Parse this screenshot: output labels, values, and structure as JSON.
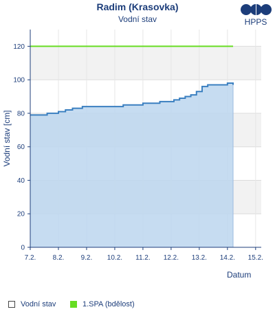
{
  "header": {
    "title": "Radim (Krasovka)",
    "subtitle": "Vodní stav",
    "logo_text": "HPPS"
  },
  "legend": {
    "items": [
      {
        "label": "Vodní stav",
        "color": "#ffffff",
        "border": "#444444"
      },
      {
        "label": "1.SPA (bdělost)",
        "color": "#66dd22",
        "border": "#66dd22"
      }
    ]
  },
  "colors": {
    "area_fill": "#bcd6ef",
    "line": "#3a7fc0",
    "spa": "#66dd22",
    "band": "#f2f2f2",
    "axis": "#1c3d7a"
  },
  "chart_data": {
    "type": "area",
    "title": "Radim (Krasovka)",
    "subtitle": "Vodní stav",
    "ylabel": "Vodní stav [cm]",
    "xlabel": "Datum",
    "ylim": [
      0,
      130
    ],
    "xlim": [
      7,
      15.2
    ],
    "y_ticks": [
      0,
      20,
      40,
      60,
      80,
      100,
      120
    ],
    "x_ticks": [
      "7.2.",
      "8.2.",
      "9.2.",
      "10.2.",
      "11.2.",
      "12.2.",
      "13.2.",
      "14.2.",
      "15.2."
    ],
    "thresholds": [
      {
        "name": "1.SPA (bdělost)",
        "value": 120
      }
    ],
    "series": [
      {
        "name": "Vodní stav",
        "x": [
          7.0,
          7.55,
          7.6,
          7.85,
          8.0,
          8.25,
          8.5,
          8.75,
          8.85,
          9.5,
          10.0,
          10.3,
          10.6,
          10.8,
          11.0,
          11.4,
          11.6,
          11.9,
          12.1,
          12.3,
          12.5,
          12.7,
          12.9,
          13.1,
          13.3,
          13.8,
          14.0,
          14.1,
          14.2
        ],
        "values": [
          79,
          79,
          80,
          80,
          81,
          82,
          83,
          83,
          84,
          84,
          84,
          85,
          85,
          85,
          86,
          86,
          87,
          87,
          88,
          89,
          90,
          91,
          93,
          96,
          97,
          97,
          98,
          98,
          97
        ]
      }
    ]
  }
}
